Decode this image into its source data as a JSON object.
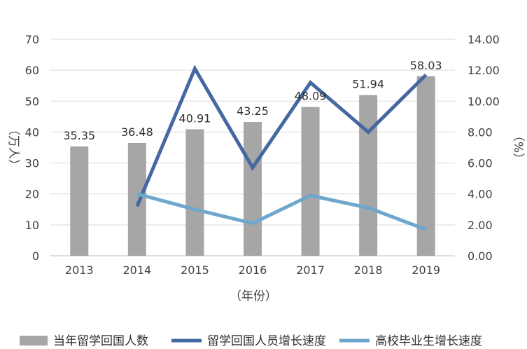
{
  "chart_data": {
    "type": "bar",
    "categories": [
      "2013",
      "2014",
      "2015",
      "2016",
      "2017",
      "2018",
      "2019"
    ],
    "y_left": {
      "label": "（万人）",
      "ylim": [
        0,
        70
      ],
      "ticks": [
        "0",
        "10",
        "20",
        "30",
        "40",
        "50",
        "60",
        "70"
      ]
    },
    "y_right": {
      "label": "（%）",
      "ylim": [
        0,
        14
      ],
      "ticks": [
        "0.00",
        "2.00",
        "4.00",
        "6.00",
        "8.00",
        "10.00",
        "12.00",
        "14.00"
      ]
    },
    "xlabel": "（年份）",
    "series": [
      {
        "name": "当年留学回国人数",
        "type": "bar",
        "axis": "left",
        "color": "#a6a6a6",
        "values": [
          35.35,
          36.48,
          40.91,
          43.25,
          48.09,
          51.94,
          58.03
        ],
        "labels": [
          "35.35",
          "36.48",
          "40.91",
          "43.25",
          "48.09",
          "51.94",
          "58.03"
        ]
      },
      {
        "name": "留学回国人员增长速度",
        "type": "line",
        "axis": "right",
        "color": "#44689f",
        "values": [
          null,
          3.2,
          12.1,
          5.7,
          11.2,
          8.0,
          11.7
        ]
      },
      {
        "name": "高校毕业生增长速度",
        "type": "line",
        "axis": "right",
        "color": "#6fa6cc",
        "values": [
          null,
          4.0,
          3.0,
          2.1,
          3.9,
          3.1,
          1.7
        ]
      }
    ],
    "legend_position": "bottom",
    "grid": "horizontal"
  }
}
